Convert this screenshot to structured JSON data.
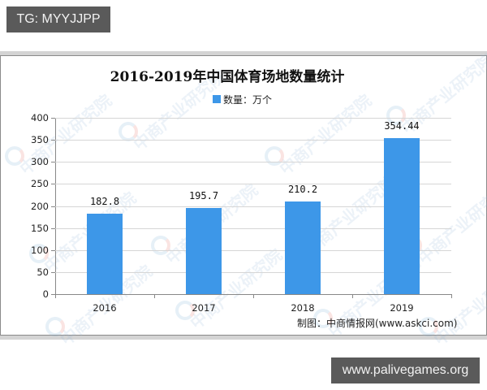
{
  "overlay": {
    "top_tag": "TG: MYYJJPP",
    "bottom_tag": "www.palivegames.org"
  },
  "watermark": {
    "text": "中商产业研究院"
  },
  "chart": {
    "title": "2016-2019年中国体育场地数量统计",
    "legend_label": "数量：万个",
    "source": "制图：中商情报网(www.askci.com)",
    "colors": {
      "bar": "#3d97e8",
      "grid": "#d6d6d6",
      "axis": "#888888"
    }
  },
  "chart_data": {
    "type": "bar",
    "title": "2016-2019年中国体育场地数量统计",
    "categories": [
      "2016",
      "2017",
      "2018",
      "2019"
    ],
    "series": [
      {
        "name": "数量：万个",
        "values": [
          182.8,
          195.7,
          210.2,
          354.44
        ]
      }
    ],
    "value_labels": [
      "182.8",
      "195.7",
      "210.2",
      "354.44"
    ],
    "xlabel": "",
    "ylabel": "",
    "ylim": [
      0,
      400
    ],
    "yticks": [
      "0",
      "50",
      "100",
      "150",
      "200",
      "250",
      "300",
      "350",
      "400"
    ],
    "grid": true,
    "legend_position": "top",
    "source": "制图：中商情报网(www.askci.com)"
  }
}
